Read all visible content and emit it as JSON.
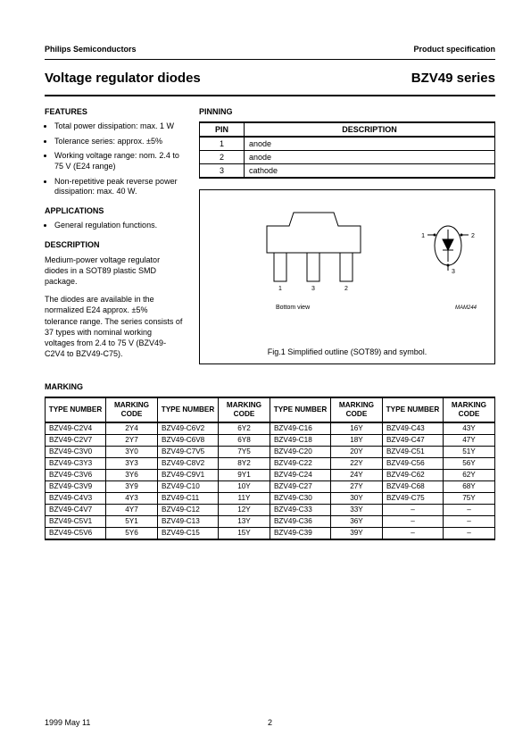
{
  "header": {
    "left": "Philips Semiconductors",
    "right": "Product specification"
  },
  "title": {
    "left": "Voltage regulator diodes",
    "right": "BZV49 series"
  },
  "features": {
    "heading": "FEATURES",
    "items": [
      "Total power dissipation: max. 1 W",
      "Tolerance series: approx. ±5%",
      "Working voltage range: nom. 2.4 to 75 V (E24 range)",
      "Non-repetitive peak reverse power dissipation: max. 40 W."
    ]
  },
  "applications": {
    "heading": "APPLICATIONS",
    "items": [
      "General regulation functions."
    ]
  },
  "description": {
    "heading": "DESCRIPTION",
    "p1": "Medium-power voltage regulator diodes in a SOT89 plastic SMD package.",
    "p2": "The diodes are available in the normalized E24 approx. ±5% tolerance range. The series consists of 37 types with nominal working voltages from 2.4 to 75 V (BZV49-C2V4 to BZV49-C75)."
  },
  "pinning": {
    "heading": "PINNING",
    "cols": [
      "PIN",
      "DESCRIPTION"
    ],
    "rows": [
      [
        "1",
        "anode"
      ],
      [
        "2",
        "anode"
      ],
      [
        "3",
        "cathode"
      ]
    ]
  },
  "figure": {
    "caption": "Fig.1  Simplified outline (SOT89) and symbol.",
    "bottom_label": "Bottom view",
    "ref": "MAM244",
    "pins": {
      "p1": "1",
      "p2": "2",
      "p3": "3"
    },
    "sym": {
      "p1": "1",
      "p2": "2",
      "p3": "3"
    }
  },
  "marking": {
    "heading": "MARKING",
    "cols": [
      "TYPE NUMBER",
      "MARKING CODE",
      "TYPE NUMBER",
      "MARKING CODE",
      "TYPE NUMBER",
      "MARKING CODE",
      "TYPE NUMBER",
      "MARKING CODE"
    ],
    "rows": [
      [
        "BZV49-C2V4",
        "2Y4",
        "BZV49-C6V2",
        "6Y2",
        "BZV49-C16",
        "16Y",
        "BZV49-C43",
        "43Y"
      ],
      [
        "BZV49-C2V7",
        "2Y7",
        "BZV49-C6V8",
        "6Y8",
        "BZV49-C18",
        "18Y",
        "BZV49-C47",
        "47Y"
      ],
      [
        "BZV49-C3V0",
        "3Y0",
        "BZV49-C7V5",
        "7Y5",
        "BZV49-C20",
        "20Y",
        "BZV49-C51",
        "51Y"
      ],
      [
        "BZV49-C3Y3",
        "3Y3",
        "BZV49-C8V2",
        "8Y2",
        "BZV49-C22",
        "22Y",
        "BZV49-C56",
        "56Y"
      ],
      [
        "BZV49-C3V6",
        "3Y6",
        "BZV49-C9V1",
        "9Y1",
        "BZV49-C24",
        "24Y",
        "BZV49-C62",
        "62Y"
      ],
      [
        "BZV49-C3V9",
        "3Y9",
        "BZV49-C10",
        "10Y",
        "BZV49-C27",
        "27Y",
        "BZV49-C68",
        "68Y"
      ],
      [
        "BZV49-C4V3",
        "4Y3",
        "BZV49-C11",
        "11Y",
        "BZV49-C30",
        "30Y",
        "BZV49-C75",
        "75Y"
      ],
      [
        "BZV49-C4V7",
        "4Y7",
        "BZV49-C12",
        "12Y",
        "BZV49-C33",
        "33Y",
        "–",
        "–"
      ],
      [
        "BZV49-C5V1",
        "5Y1",
        "BZV49-C13",
        "13Y",
        "BZV49-C36",
        "36Y",
        "–",
        "–"
      ],
      [
        "BZV49-C5V6",
        "5Y6",
        "BZV49-C15",
        "15Y",
        "BZV49-C39",
        "39Y",
        "–",
        "–"
      ]
    ]
  },
  "footer": {
    "date": "1999 May 11",
    "page": "2"
  }
}
